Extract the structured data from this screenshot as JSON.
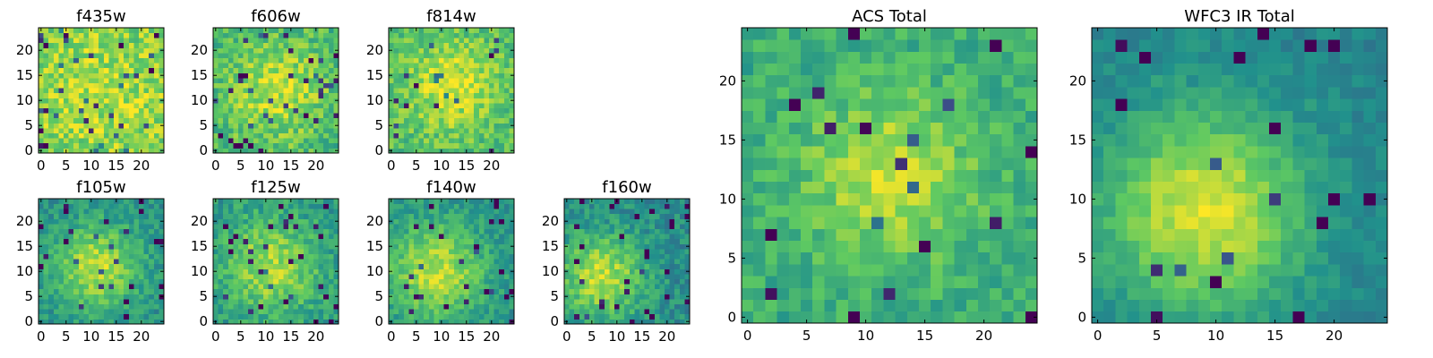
{
  "figure": {
    "background": "#ffffff"
  },
  "colormap": {
    "name": "viridis",
    "stops": [
      "#440154",
      "#3b528b",
      "#21918c",
      "#5ec962",
      "#fde725"
    ]
  },
  "chart_data": [
    {
      "type": "heatmap",
      "title": "f435w",
      "grid_size": 25,
      "xlim": [
        0,
        24
      ],
      "ylim": [
        0,
        24
      ],
      "x_ticks": [
        "0",
        "5",
        "10",
        "15",
        "20"
      ],
      "y_ticks": [
        "0",
        "5",
        "10",
        "15",
        "20"
      ],
      "pattern": {
        "seed": 11,
        "peak_x": 12,
        "peak_y": 11,
        "radius": 14,
        "peak": 0.15,
        "base": 0.72,
        "noise": 0.32,
        "dark_fraction": 0.05
      }
    },
    {
      "type": "heatmap",
      "title": "f606w",
      "grid_size": 25,
      "xlim": [
        0,
        24
      ],
      "ylim": [
        0,
        24
      ],
      "x_ticks": [
        "0",
        "5",
        "10",
        "15",
        "20"
      ],
      "y_ticks": [
        "0",
        "5",
        "10",
        "15",
        "20"
      ],
      "pattern": {
        "seed": 23,
        "peak_x": 12,
        "peak_y": 12,
        "radius": 7,
        "peak": 0.25,
        "base": 0.66,
        "noise": 0.3,
        "dark_fraction": 0.05
      }
    },
    {
      "type": "heatmap",
      "title": "f814w",
      "grid_size": 25,
      "xlim": [
        0,
        24
      ],
      "ylim": [
        0,
        24
      ],
      "x_ticks": [
        "0",
        "5",
        "10",
        "15",
        "20"
      ],
      "y_ticks": [
        "0",
        "5",
        "10",
        "15",
        "20"
      ],
      "pattern": {
        "seed": 37,
        "peak_x": 12,
        "peak_y": 13,
        "radius": 6,
        "peak": 0.25,
        "base": 0.7,
        "noise": 0.28,
        "dark_fraction": 0.03
      }
    },
    {
      "type": "heatmap",
      "title": "ACS Total",
      "grid_size": 25,
      "xlim": [
        0,
        24
      ],
      "ylim": [
        0,
        24
      ],
      "x_ticks": [
        "0",
        "5",
        "10",
        "15",
        "20"
      ],
      "y_ticks": [
        "0",
        "5",
        "10",
        "15",
        "20"
      ],
      "pattern": {
        "seed": 41,
        "peak_x": 12,
        "peak_y": 12,
        "radius": 5,
        "peak": 0.28,
        "base": 0.62,
        "noise": 0.22,
        "dark_fraction": 0.03
      }
    },
    {
      "type": "heatmap",
      "title": "WFC3 IR Total",
      "grid_size": 25,
      "xlim": [
        0,
        24
      ],
      "ylim": [
        0,
        24
      ],
      "x_ticks": [
        "0",
        "5",
        "10",
        "15",
        "20"
      ],
      "y_ticks": [
        "0",
        "5",
        "10",
        "15",
        "20"
      ],
      "pattern": {
        "seed": 53,
        "peak_x": 9,
        "peak_y": 9,
        "radius": 6,
        "peak": 0.5,
        "base": 0.45,
        "noise": 0.14,
        "dark_fraction": 0.04
      }
    },
    {
      "type": "heatmap",
      "title": "f105w",
      "grid_size": 25,
      "xlim": [
        0,
        24
      ],
      "ylim": [
        0,
        24
      ],
      "x_ticks": [
        "0",
        "5",
        "10",
        "15",
        "20"
      ],
      "y_ticks": [
        "0",
        "5",
        "10",
        "15",
        "20"
      ],
      "pattern": {
        "seed": 61,
        "peak_x": 11,
        "peak_y": 11,
        "radius": 6,
        "peak": 0.4,
        "base": 0.5,
        "noise": 0.22,
        "dark_fraction": 0.05
      }
    },
    {
      "type": "heatmap",
      "title": "f125w",
      "grid_size": 25,
      "xlim": [
        0,
        24
      ],
      "ylim": [
        0,
        24
      ],
      "x_ticks": [
        "0",
        "5",
        "10",
        "15",
        "20"
      ],
      "y_ticks": [
        "0",
        "5",
        "10",
        "15",
        "20"
      ],
      "pattern": {
        "seed": 73,
        "peak_x": 11,
        "peak_y": 11,
        "radius": 7,
        "peak": 0.35,
        "base": 0.52,
        "noise": 0.25,
        "dark_fraction": 0.05
      }
    },
    {
      "type": "heatmap",
      "title": "f140w",
      "grid_size": 25,
      "xlim": [
        0,
        24
      ],
      "ylim": [
        0,
        24
      ],
      "x_ticks": [
        "0",
        "5",
        "10",
        "15",
        "20"
      ],
      "y_ticks": [
        "0",
        "5",
        "10",
        "15",
        "20"
      ],
      "pattern": {
        "seed": 89,
        "peak_x": 9,
        "peak_y": 10,
        "radius": 7,
        "peak": 0.4,
        "base": 0.5,
        "noise": 0.22,
        "dark_fraction": 0.05
      }
    },
    {
      "type": "heatmap",
      "title": "f160w",
      "grid_size": 25,
      "xlim": [
        0,
        24
      ],
      "ylim": [
        0,
        24
      ],
      "x_ticks": [
        "0",
        "5",
        "10",
        "15",
        "20"
      ],
      "y_ticks": [
        "0",
        "5",
        "10",
        "15",
        "20"
      ],
      "pattern": {
        "seed": 97,
        "peak_x": 7,
        "peak_y": 9,
        "radius": 6,
        "peak": 0.42,
        "base": 0.48,
        "noise": 0.24,
        "dark_fraction": 0.05
      }
    }
  ]
}
